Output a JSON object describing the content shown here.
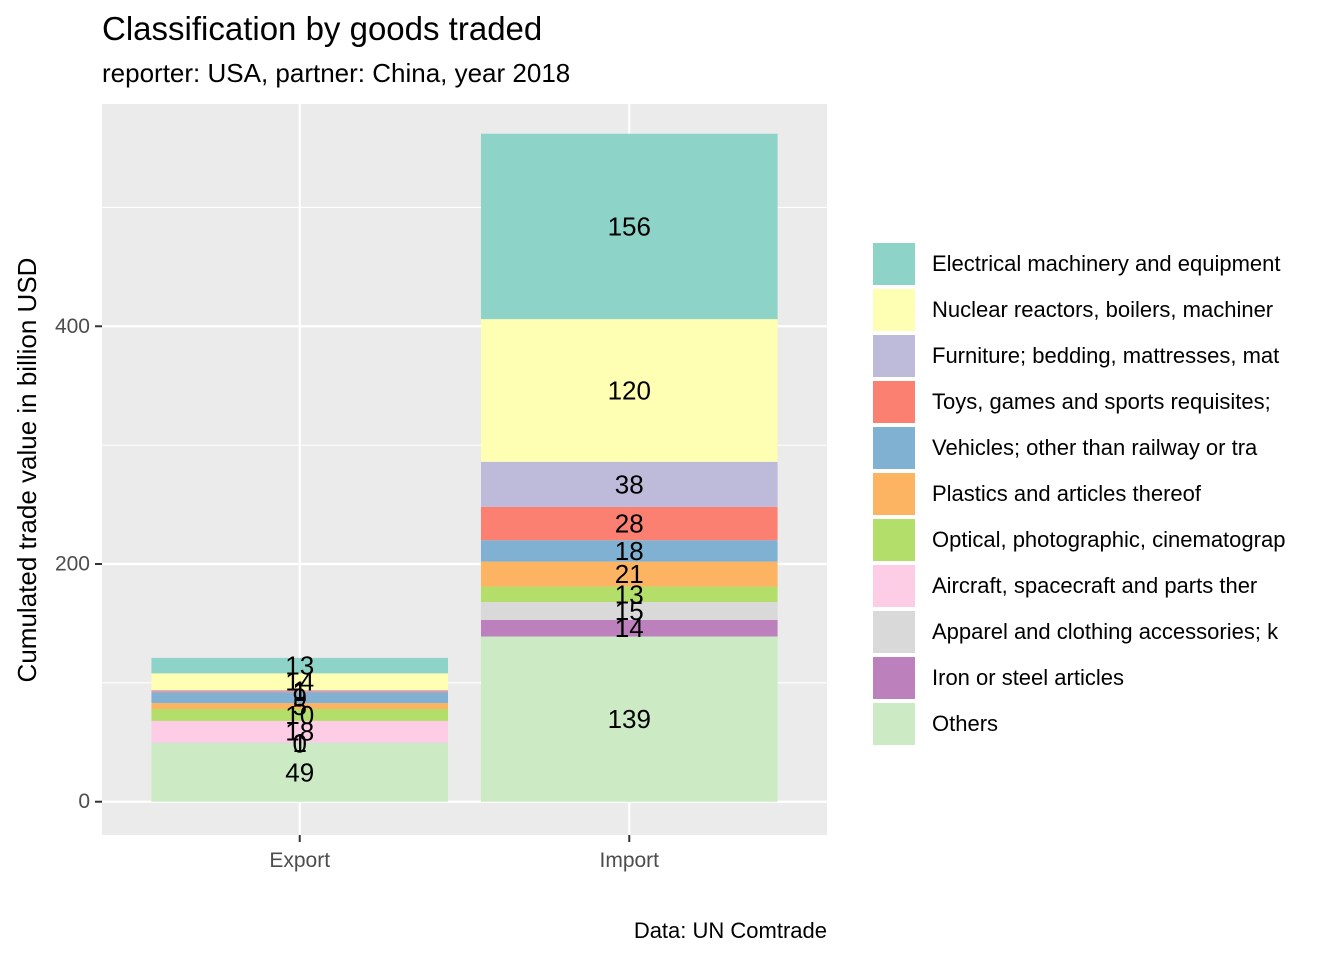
{
  "chart_data": {
    "type": "bar",
    "stacked": true,
    "title": "Classification by goods traded",
    "subtitle": "reporter: USA, partner: China, year 2018",
    "caption": "Data: UN Comtrade",
    "xlabel": "",
    "ylabel": "Cumulated trade value in billion USD",
    "ylim": [
      -28,
      587
    ],
    "yticks": [
      0,
      200,
      400
    ],
    "grid": true,
    "legend_position": "right",
    "categories": [
      "Export",
      "Import"
    ],
    "series": [
      {
        "name": "Electrical machinery and equipment",
        "color": "#8DD3C7",
        "values": [
          13,
          156
        ]
      },
      {
        "name": "Nuclear reactors, boilers, machiner",
        "color": "#FFFFB3",
        "values": [
          14,
          120
        ]
      },
      {
        "name": "Furniture; bedding, mattresses, mat",
        "color": "#BEBADA",
        "values": [
          1,
          38
        ]
      },
      {
        "name": "Toys, games and sports requisites;",
        "color": "#FB8072",
        "values": [
          1,
          28
        ]
      },
      {
        "name": "Vehicles; other than railway or tra",
        "color": "#80B1D3",
        "values": [
          9,
          18
        ]
      },
      {
        "name": "Plastics and articles thereof",
        "color": "#FDB462",
        "values": [
          5,
          21
        ]
      },
      {
        "name": "Optical, photographic, cinematograp",
        "color": "#B3DE69",
        "values": [
          10,
          13
        ]
      },
      {
        "name": "Aircraft, spacecraft and parts ther",
        "color": "#FCCDE5",
        "values": [
          18,
          0
        ]
      },
      {
        "name": "Apparel and clothing accessories; k",
        "color": "#D9D9D9",
        "values": [
          1,
          15
        ]
      },
      {
        "name": "Iron or steel articles",
        "color": "#BC80BD",
        "values": [
          0,
          14
        ]
      },
      {
        "name": "Others",
        "color": "#CCEBC5",
        "values": [
          49,
          139
        ]
      }
    ],
    "data_labels": [
      [
        "13",
        "156"
      ],
      [
        "14",
        "120"
      ],
      [
        "1",
        "38"
      ],
      [
        "1",
        "28"
      ],
      [
        "9",
        "18"
      ],
      [
        "5",
        "21"
      ],
      [
        "10",
        "13"
      ],
      [
        "18",
        ""
      ],
      [
        "1",
        "15"
      ],
      [
        "0",
        "14"
      ],
      [
        "49",
        "139"
      ]
    ]
  }
}
